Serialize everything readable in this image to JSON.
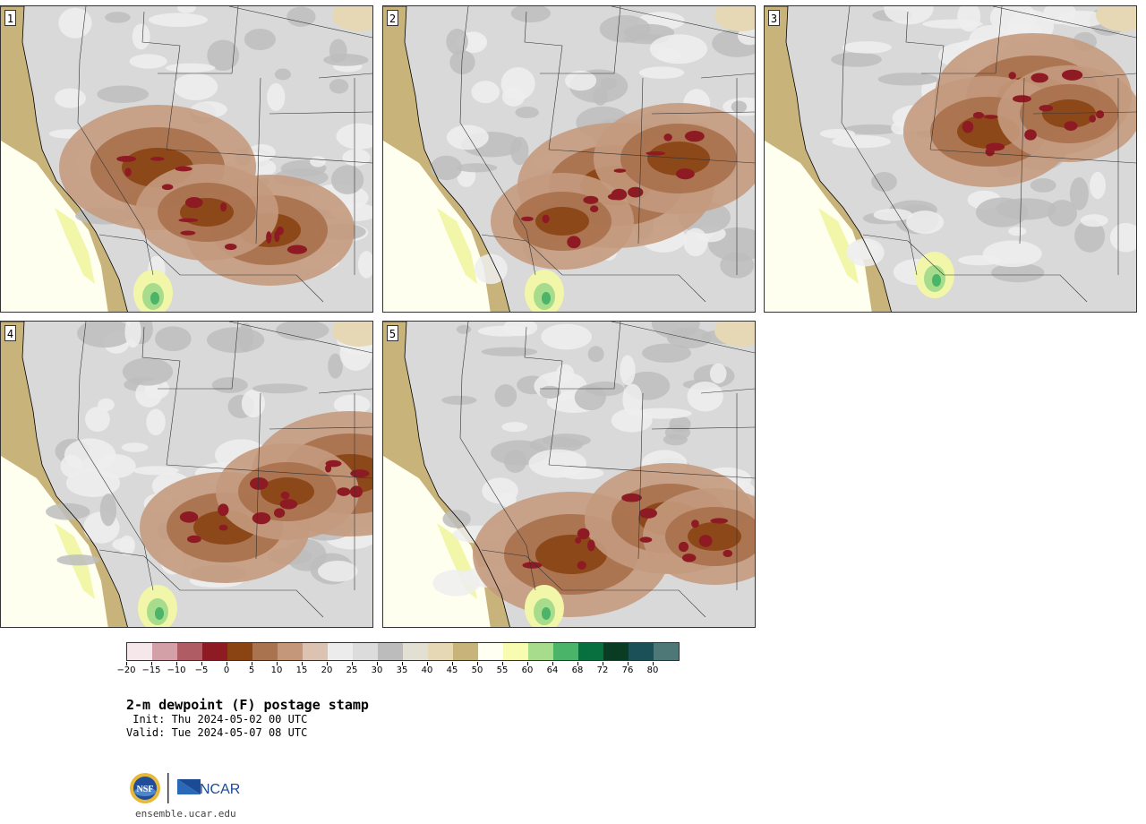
{
  "panels": [
    {
      "number": "1",
      "seed": 11,
      "hot": [
        [
          175,
          180
        ],
        [
          300,
          250
        ],
        [
          230,
          230
        ]
      ],
      "wet": [
        [
          170,
          320
        ]
      ]
    },
    {
      "number": "2",
      "seed": 27,
      "hot": [
        [
          260,
          200
        ],
        [
          330,
          170
        ],
        [
          200,
          240
        ]
      ],
      "wet": [
        [
          180,
          320
        ]
      ]
    },
    {
      "number": "3",
      "seed": 43,
      "hot": [
        [
          300,
          100
        ],
        [
          250,
          140
        ],
        [
          340,
          120
        ]
      ],
      "wet": [
        [
          190,
          300
        ]
      ]
    },
    {
      "number": "4",
      "seed": 59,
      "hot": [
        [
          390,
          170
        ],
        [
          250,
          230
        ],
        [
          320,
          190
        ]
      ],
      "wet": [
        [
          175,
          320
        ]
      ]
    },
    {
      "number": "5",
      "seed": 71,
      "hot": [
        [
          210,
          260
        ],
        [
          320,
          220
        ],
        [
          370,
          240
        ]
      ],
      "wet": [
        [
          180,
          320
        ]
      ]
    }
  ],
  "colorbar": {
    "colors": [
      "#f6e8ea",
      "#d4a0a8",
      "#b05c64",
      "#8e1a24",
      "#8a4413",
      "#a8734e",
      "#c4977a",
      "#dcc2b0",
      "#ececec",
      "#dcdcdc",
      "#bcbcbc",
      "#e2e0d2",
      "#e6d8b4",
      "#c8b47a",
      "#fffff2",
      "#f8fcb0",
      "#a6dc8c",
      "#4ab468",
      "#08703e",
      "#0a3c24",
      "#1c5058",
      "#4e7878"
    ],
    "ticks": [
      "−20",
      "−15",
      "−10",
      "−5",
      "0",
      "5",
      "10",
      "15",
      "20",
      "25",
      "30",
      "35",
      "40",
      "45",
      "50",
      "55",
      "60",
      "64",
      "68",
      "72",
      "76",
      "80"
    ]
  },
  "title": "2-m dewpoint (F) postage stamp",
  "init": " Init: Thu 2024-05-02 00 UTC",
  "valid": "Valid: Tue 2024-05-07 08 UTC",
  "logo": {
    "nsf": "NSF",
    "ncar": "NCAR"
  },
  "website": "ensemble.ucar.edu"
}
